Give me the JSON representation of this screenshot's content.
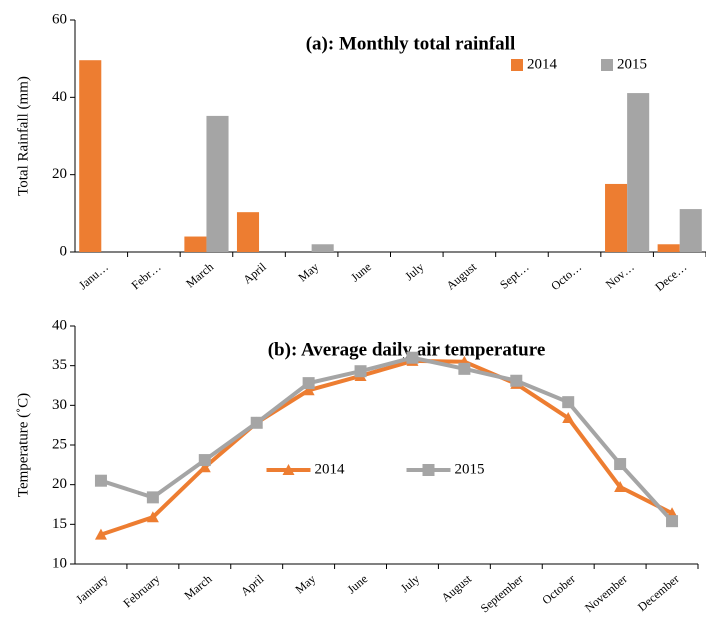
{
  "chart_data": [
    {
      "type": "bar",
      "title": "(a): Monthly total rainfall",
      "y_label": "Total Rainfall (mm)",
      "categories": [
        "Janu…",
        "Febr…",
        "March",
        "April",
        "May",
        "June",
        "July",
        "August",
        "Sept…",
        "Octo…",
        "Nov…",
        "Dece…"
      ],
      "series": [
        {
          "name": "2014",
          "color": "#ed7d31",
          "values": [
            49.6,
            0,
            4,
            10.3,
            0,
            0,
            0,
            0,
            0,
            0,
            17.6,
            2
          ]
        },
        {
          "name": "2015",
          "color": "#a5a5a5",
          "values": [
            0,
            0,
            35.2,
            0,
            2,
            0,
            0,
            0,
            0,
            0,
            41.1,
            11.1
          ]
        }
      ],
      "ylim": [
        0,
        60
      ],
      "yticks": [
        0,
        20,
        40,
        60
      ],
      "legend": "upper right"
    },
    {
      "type": "line",
      "title": "(b): Average daily air temperature",
      "y_label": "Temperature (˚C)",
      "categories": [
        "January",
        "February",
        "March",
        "April",
        "May",
        "June",
        "July",
        "August",
        "September",
        "October",
        "November",
        "December"
      ],
      "series": [
        {
          "name": "2014",
          "color": "#ed7d31",
          "marker": "triangle",
          "values": [
            13.7,
            15.9,
            22.2,
            27.8,
            31.9,
            33.7,
            35.6,
            35.5,
            32.7,
            28.4,
            19.7,
            16.4
          ]
        },
        {
          "name": "2015",
          "color": "#a5a5a5",
          "marker": "square",
          "values": [
            20.5,
            18.4,
            23.1,
            27.8,
            32.8,
            34.3,
            36.0,
            34.6,
            33.1,
            30.4,
            22.6,
            15.4
          ]
        }
      ],
      "ylim": [
        10,
        40
      ],
      "yticks": [
        10,
        15,
        20,
        25,
        30,
        35,
        40
      ],
      "legend": "lower center"
    }
  ]
}
